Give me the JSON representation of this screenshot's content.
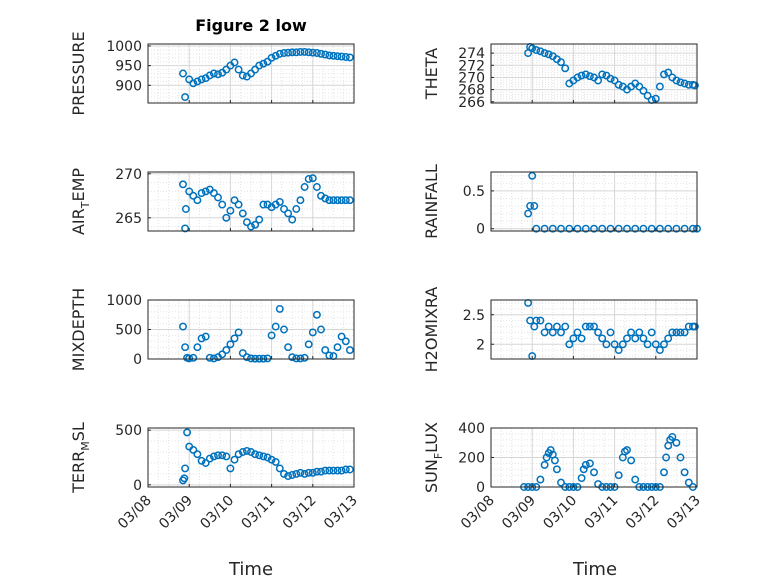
{
  "figure": {
    "title": "Figure 2 low",
    "marker_color": "#0072BD",
    "x_label": "Time",
    "x_tick_labels": [
      "03/08",
      "03/09",
      "03/10",
      "03/11",
      "03/12",
      "03/13"
    ]
  },
  "chart_data": [
    {
      "type": "scatter",
      "panel": "pressure",
      "ylabel": "PRESSURE",
      "ylim": [
        855,
        1005
      ],
      "yticks": [
        900,
        950,
        1000
      ],
      "ytick_labels": [
        "900",
        "950",
        "1000"
      ],
      "x": [
        0.85,
        0.9,
        1.0,
        1.1,
        1.2,
        1.3,
        1.4,
        1.5,
        1.6,
        1.7,
        1.8,
        1.9,
        2.0,
        2.1,
        2.2,
        2.3,
        2.4,
        2.5,
        2.6,
        2.7,
        2.8,
        2.9,
        3.0,
        3.1,
        3.2,
        3.3,
        3.4,
        3.5,
        3.6,
        3.7,
        3.8,
        3.9,
        4.0,
        4.1,
        4.2,
        4.3,
        4.4,
        4.5,
        4.6,
        4.7,
        4.8,
        4.9
      ],
      "y": [
        930,
        870,
        915,
        905,
        910,
        915,
        918,
        925,
        930,
        928,
        932,
        940,
        950,
        958,
        940,
        925,
        922,
        930,
        940,
        950,
        955,
        960,
        970,
        975,
        980,
        982,
        983,
        984,
        984,
        985,
        985,
        984,
        983,
        982,
        980,
        978,
        976,
        975,
        974,
        973,
        972,
        971
      ]
    },
    {
      "type": "scatter",
      "panel": "theta",
      "ylabel": "THETA",
      "ylim": [
        265.8,
        275.5
      ],
      "yticks": [
        266,
        268,
        270,
        272,
        274
      ],
      "ytick_labels": [
        "266",
        "268",
        "270",
        "272",
        "274"
      ],
      "x": [
        0.9,
        0.95,
        1.0,
        1.1,
        1.2,
        1.3,
        1.4,
        1.5,
        1.6,
        1.7,
        1.8,
        1.9,
        2.0,
        2.1,
        2.2,
        2.3,
        2.4,
        2.5,
        2.6,
        2.7,
        2.8,
        2.9,
        3.0,
        3.1,
        3.2,
        3.3,
        3.4,
        3.5,
        3.6,
        3.7,
        3.8,
        3.9,
        4.0,
        4.1,
        4.2,
        4.3,
        4.4,
        4.5,
        4.6,
        4.7,
        4.8,
        4.9,
        4.95
      ],
      "y": [
        274,
        275,
        274.8,
        274.5,
        274.3,
        274,
        273.8,
        273.5,
        273,
        272.5,
        271.5,
        269,
        269.5,
        270,
        270.3,
        270.5,
        270.2,
        270,
        269.5,
        270.5,
        270.3,
        269.8,
        269.5,
        268.8,
        268.5,
        268,
        268.5,
        269,
        268.5,
        267.8,
        267,
        266.3,
        266.5,
        268.5,
        270.5,
        270.8,
        270,
        269.5,
        269.2,
        269,
        268.8,
        268.8,
        268.7
      ]
    },
    {
      "type": "scatter",
      "panel": "air_temp",
      "ylabel": "AIR_TEMP",
      "ylim": [
        263.5,
        270.2
      ],
      "yticks": [
        265,
        270
      ],
      "ytick_labels": [
        "265",
        "270"
      ],
      "x": [
        0.85,
        0.9,
        0.92,
        1.0,
        1.1,
        1.2,
        1.3,
        1.4,
        1.5,
        1.6,
        1.7,
        1.8,
        1.9,
        2.0,
        2.1,
        2.2,
        2.3,
        2.4,
        2.5,
        2.6,
        2.7,
        2.8,
        2.9,
        3.0,
        3.1,
        3.2,
        3.3,
        3.4,
        3.5,
        3.6,
        3.7,
        3.8,
        3.9,
        4.0,
        4.1,
        4.2,
        4.3,
        4.4,
        4.5,
        4.6,
        4.7,
        4.8,
        4.9
      ],
      "y": [
        268.8,
        263.8,
        266,
        268,
        267.5,
        267,
        267.8,
        268,
        268.2,
        267.8,
        267.3,
        266.5,
        265,
        265.8,
        267,
        266.5,
        265.5,
        264.5,
        264,
        264.2,
        264.8,
        266.5,
        266.5,
        266.2,
        266.5,
        266.8,
        266,
        265.5,
        264.8,
        266,
        267,
        268.5,
        269.4,
        269.5,
        268.5,
        267.5,
        267.2,
        267,
        267,
        267,
        267,
        267,
        267
      ]
    },
    {
      "type": "scatter",
      "panel": "rainfall",
      "ylabel": "RAINFALL",
      "ylim": [
        -0.03,
        0.75
      ],
      "yticks": [
        0,
        0.5
      ],
      "ytick_labels": [
        "0",
        "0.5"
      ],
      "x": [
        0.9,
        0.95,
        1.0,
        1.05,
        1.1,
        1.3,
        1.5,
        1.7,
        1.9,
        2.1,
        2.3,
        2.5,
        2.7,
        2.9,
        3.1,
        3.3,
        3.5,
        3.7,
        3.9,
        4.1,
        4.3,
        4.5,
        4.7,
        4.9,
        5.0
      ],
      "y": [
        0.2,
        0.3,
        0.7,
        0.3,
        0,
        0,
        0,
        0,
        0,
        0,
        0,
        0,
        0,
        0,
        0,
        0,
        0,
        0,
        0,
        0,
        0,
        0,
        0,
        0,
        0
      ]
    },
    {
      "type": "scatter",
      "panel": "mixdepth",
      "ylabel": "MIXDEPTH",
      "ylim": [
        0,
        1000
      ],
      "yticks": [
        0,
        500,
        1000
      ],
      "ytick_labels": [
        "0",
        "500",
        "1000"
      ],
      "x": [
        0.85,
        0.9,
        0.95,
        1.0,
        1.1,
        1.2,
        1.3,
        1.4,
        1.5,
        1.6,
        1.7,
        1.8,
        1.9,
        2.0,
        2.1,
        2.2,
        2.3,
        2.4,
        2.5,
        2.6,
        2.7,
        2.8,
        2.9,
        3.0,
        3.1,
        3.2,
        3.3,
        3.4,
        3.5,
        3.6,
        3.7,
        3.8,
        3.9,
        4.0,
        4.1,
        4.2,
        4.3,
        4.4,
        4.5,
        4.6,
        4.7,
        4.8,
        4.9
      ],
      "y": [
        550,
        200,
        20,
        10,
        20,
        200,
        350,
        380,
        20,
        10,
        30,
        80,
        150,
        250,
        350,
        450,
        100,
        30,
        10,
        5,
        5,
        5,
        10,
        400,
        550,
        850,
        500,
        200,
        30,
        10,
        10,
        20,
        250,
        450,
        750,
        500,
        150,
        60,
        50,
        200,
        380,
        300,
        150
      ]
    },
    {
      "type": "scatter",
      "panel": "h2omixra",
      "ylabel": "H2OMIXRA",
      "ylim": [
        1.75,
        2.75
      ],
      "yticks": [
        2,
        2.5
      ],
      "ytick_labels": [
        "2",
        "2.5"
      ],
      "x": [
        0.9,
        0.95,
        1.0,
        1.05,
        1.1,
        1.2,
        1.3,
        1.4,
        1.5,
        1.6,
        1.7,
        1.8,
        1.9,
        2.0,
        2.1,
        2.2,
        2.3,
        2.4,
        2.5,
        2.6,
        2.7,
        2.8,
        2.9,
        3.0,
        3.1,
        3.2,
        3.3,
        3.4,
        3.5,
        3.6,
        3.7,
        3.8,
        3.9,
        4.0,
        4.1,
        4.2,
        4.3,
        4.4,
        4.5,
        4.6,
        4.7,
        4.8,
        4.9,
        4.95
      ],
      "y": [
        2.7,
        2.4,
        1.8,
        2.3,
        2.4,
        2.4,
        2.2,
        2.3,
        2.2,
        2.3,
        2.2,
        2.3,
        2.0,
        2.1,
        2.2,
        2.1,
        2.3,
        2.3,
        2.3,
        2.2,
        2.1,
        2.0,
        2.2,
        2.0,
        1.9,
        2.0,
        2.1,
        2.2,
        2.1,
        2.2,
        2.1,
        2.0,
        2.2,
        2.0,
        1.9,
        2.0,
        2.1,
        2.2,
        2.2,
        2.2,
        2.2,
        2.3,
        2.3,
        2.3
      ]
    },
    {
      "type": "scatter",
      "panel": "terr_msl",
      "ylabel": "TERR_MSL",
      "ylim": [
        -20,
        520
      ],
      "yticks": [
        0,
        500
      ],
      "ytick_labels": [
        "0",
        "500"
      ],
      "x": [
        0.85,
        0.88,
        0.9,
        0.95,
        1.0,
        1.1,
        1.2,
        1.3,
        1.4,
        1.5,
        1.6,
        1.7,
        1.8,
        1.9,
        2.0,
        2.1,
        2.2,
        2.3,
        2.4,
        2.5,
        2.6,
        2.7,
        2.8,
        2.9,
        3.0,
        3.1,
        3.2,
        3.3,
        3.4,
        3.5,
        3.6,
        3.7,
        3.8,
        3.9,
        4.0,
        4.1,
        4.2,
        4.3,
        4.4,
        4.5,
        4.6,
        4.7,
        4.8,
        4.9
      ],
      "y": [
        40,
        60,
        150,
        480,
        350,
        320,
        280,
        220,
        200,
        240,
        260,
        270,
        270,
        260,
        150,
        230,
        280,
        300,
        310,
        300,
        280,
        270,
        260,
        250,
        230,
        210,
        150,
        100,
        80,
        90,
        100,
        110,
        100,
        110,
        110,
        120,
        120,
        130,
        130,
        130,
        130,
        130,
        140,
        140
      ]
    },
    {
      "type": "scatter",
      "panel": "sun_flux",
      "ylabel": "SUN_FLUX",
      "ylim": [
        0,
        400
      ],
      "yticks": [
        0,
        200,
        400
      ],
      "ytick_labels": [
        "0",
        "200",
        "400"
      ],
      "x": [
        0.8,
        0.9,
        1.0,
        1.1,
        1.2,
        1.3,
        1.35,
        1.4,
        1.45,
        1.5,
        1.55,
        1.6,
        1.7,
        1.8,
        1.9,
        2.0,
        2.1,
        2.2,
        2.25,
        2.3,
        2.4,
        2.5,
        2.6,
        2.7,
        2.8,
        2.9,
        3.0,
        3.1,
        3.2,
        3.25,
        3.3,
        3.4,
        3.5,
        3.6,
        3.7,
        3.8,
        3.9,
        4.0,
        4.1,
        4.2,
        4.25,
        4.3,
        4.35,
        4.4,
        4.5,
        4.6,
        4.7,
        4.8,
        4.9
      ],
      "y": [
        0,
        0,
        0,
        0,
        50,
        150,
        200,
        230,
        250,
        220,
        180,
        120,
        30,
        0,
        0,
        0,
        0,
        60,
        120,
        150,
        160,
        100,
        20,
        0,
        0,
        0,
        0,
        80,
        200,
        240,
        250,
        180,
        50,
        0,
        0,
        0,
        0,
        0,
        0,
        100,
        200,
        280,
        320,
        340,
        300,
        200,
        100,
        30,
        0
      ]
    }
  ]
}
